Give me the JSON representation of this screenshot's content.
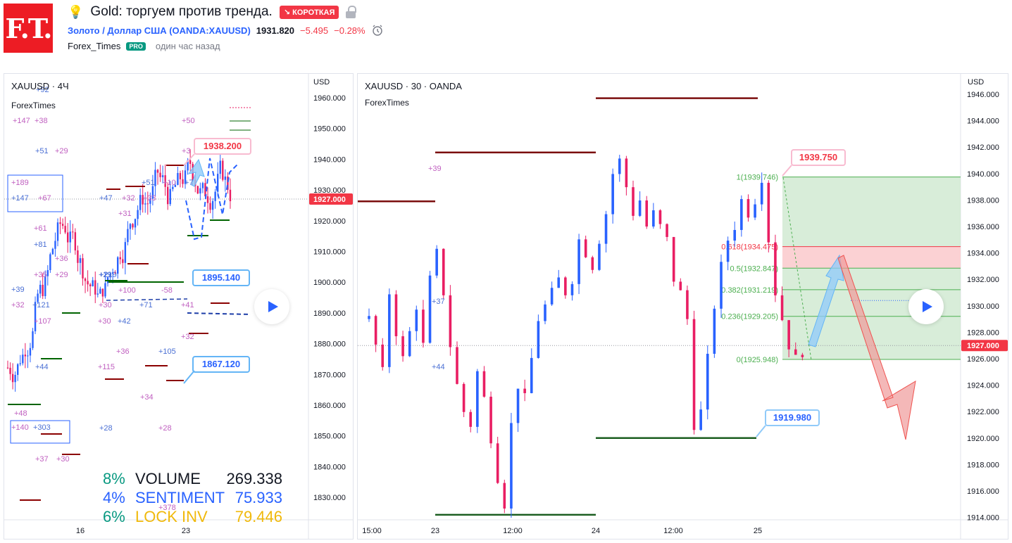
{
  "header": {
    "logo_text": "F.T.",
    "title": "Gold: торгуем против тренда.",
    "direction_badge": "↘ КОРОТКАЯ",
    "symbol_name": "Золото / Доллар США (OANDA:XAUUSD)",
    "last_price": "1931.820",
    "change_abs": "−5.495",
    "change_pct": "−0.28%",
    "author": "Forex_Times",
    "author_badge": "PRO",
    "published": "один час назад",
    "icons": [
      "bulb-icon",
      "lock-icon",
      "alarm-clock-icon"
    ],
    "colors": {
      "brand": "#ed1c24",
      "short": "#f23645",
      "link": "#2962ff",
      "pro": "#089981"
    }
  },
  "left_chart": {
    "symbol": "XAUUSD · 4Ч",
    "indicator": "ForexTimes",
    "currency": "USD",
    "price_ticks": [
      "1960.000",
      "1950.000",
      "1940.000",
      "1930.000",
      "1920.000",
      "1910.000",
      "1900.000",
      "1890.000",
      "1880.000",
      "1870.000",
      "1860.000",
      "1850.000",
      "1840.000",
      "1830.000"
    ],
    "last_price_label": "1927.000",
    "time_ticks": [
      "16",
      "23"
    ],
    "callouts": [
      "1938.200",
      "1895.140",
      "1867.120"
    ],
    "level_labels": [
      "+92",
      "+147",
      "+38",
      "+51",
      "+29",
      "+189",
      "+147",
      "+67",
      "+61",
      "+81",
      "+35",
      "+36",
      "+39",
      "+29",
      "+32",
      "+121",
      "+107",
      "+30",
      "+44",
      "+48",
      "+140",
      "+303",
      "+37",
      "+30",
      "+47",
      "+32",
      "+33",
      "+51",
      "+10",
      "+31",
      "+29",
      "+50",
      "+3",
      "+7",
      "+100",
      "-58",
      "+71",
      "+41",
      "+30",
      "+42",
      "+32",
      "+36",
      "+105",
      "+115",
      "+34",
      "+28",
      "+28",
      "+378",
      "+219"
    ],
    "stats": [
      {
        "pct": "8%",
        "name": "VOLUME",
        "value": "269.338",
        "color": "#089981",
        "name_color": "#131722"
      },
      {
        "pct": "4%",
        "name": "SENTIMENT",
        "value": "75.933",
        "color": "#2962ff",
        "name_color": "#2962ff"
      },
      {
        "pct": "6%",
        "name": "LOCK INV",
        "value": "79.446",
        "color": "#089981",
        "name_color": "#f0b90b"
      }
    ]
  },
  "right_chart": {
    "symbol": "XAUUSD · 30 · OANDA",
    "indicator": "ForexTimes",
    "currency": "USD",
    "price_ticks": [
      "1946.000",
      "1944.000",
      "1942.000",
      "1940.000",
      "1938.000",
      "1936.000",
      "1934.000",
      "1932.000",
      "1930.000",
      "1928.000",
      "1926.000",
      "1924.000",
      "1922.000",
      "1920.000",
      "1918.000",
      "1916.000",
      "1914.000"
    ],
    "last_price_label": "1927.000",
    "time_ticks": [
      "15:00",
      "23",
      "12:00",
      "24",
      "12:00",
      "25"
    ],
    "callouts": [
      "1939.750",
      "1919.980"
    ],
    "fib_levels": [
      "1(1939.746)",
      "0.618(1934.475)",
      "0.5(1932.847)",
      "0.382(1931.219)",
      "0.236(1929.205)",
      "0(1925.948)"
    ],
    "level_labels": [
      "+39",
      "+37",
      "+44"
    ]
  }
}
